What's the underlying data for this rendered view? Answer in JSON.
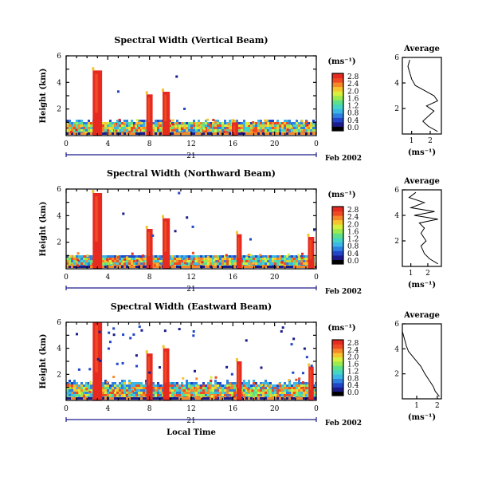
{
  "date_label": "Feb 2002",
  "x_title": "Local Time",
  "y_title": "Height (km)",
  "time_day": "21",
  "colorbar": {
    "unit": "(ms⁻¹)",
    "colors": [
      "#000000",
      "#1b1b8c",
      "#2146c8",
      "#2d7fe0",
      "#3bb7e6",
      "#45d6c3",
      "#5de08a",
      "#9bea4e",
      "#d7f03c",
      "#f6c52e",
      "#f5892a",
      "#ef4a23",
      "#e62a1f"
    ]
  },
  "avg_title": "Average",
  "avg_unit": "(ms⁻¹)",
  "chart_data": [
    {
      "type": "heatmap",
      "title": "Spectral Width (Vertical Beam)",
      "xlabel": "",
      "ylabel": "Height (km)",
      "xlim": [
        0,
        24
      ],
      "ylim": [
        0,
        6
      ],
      "x_ticks": [
        "0",
        "4",
        "8",
        "12",
        "16",
        "20",
        "0"
      ],
      "y_ticks": [
        "2",
        "4",
        "6"
      ],
      "colorbar_ticks": [
        "0.0",
        "0.4",
        "0.8",
        "1.2",
        "1.6",
        "2.0",
        "2.4",
        "2.8"
      ],
      "plumes": [
        {
          "t": 3.0,
          "w": 0.9,
          "top": 4.9
        },
        {
          "t": 8.0,
          "w": 0.6,
          "top": 3.1
        },
        {
          "t": 9.6,
          "w": 0.7,
          "top": 3.3
        },
        {
          "t": 16.2,
          "w": 0.6,
          "top": 1.0
        }
      ],
      "layer_top": [
        1.3,
        1.5
      ],
      "average": {
        "x_ticks": [
          "1",
          "2"
        ],
        "xlim": [
          0.5,
          2.6
        ],
        "ylim": [
          0,
          6
        ],
        "y_ticks": [
          "2",
          "4",
          "6"
        ],
        "profile": [
          [
            2.4,
            0.2
          ],
          [
            1.9,
            0.6
          ],
          [
            1.6,
            1.0
          ],
          [
            1.9,
            1.4
          ],
          [
            2.2,
            1.8
          ],
          [
            1.8,
            2.2
          ],
          [
            2.4,
            2.6
          ],
          [
            2.2,
            3.0
          ],
          [
            1.7,
            3.4
          ],
          [
            1.2,
            3.8
          ],
          [
            1.0,
            4.3
          ],
          [
            0.9,
            4.8
          ],
          [
            0.8,
            5.3
          ],
          [
            0.9,
            5.8
          ]
        ]
      }
    },
    {
      "type": "heatmap",
      "title": "Spectral Width (Northward Beam)",
      "xlabel": "",
      "ylabel": "Height (km)",
      "xlim": [
        0,
        24
      ],
      "ylim": [
        0,
        6
      ],
      "x_ticks": [
        "0",
        "4",
        "8",
        "12",
        "16",
        "20",
        "0"
      ],
      "y_ticks": [
        "2",
        "4",
        "6"
      ],
      "colorbar_ticks": [
        "0.0",
        "0.4",
        "0.8",
        "1.2",
        "1.6",
        "2.0",
        "2.4",
        "2.8"
      ],
      "plumes": [
        {
          "t": 3.0,
          "w": 0.9,
          "top": 5.7
        },
        {
          "t": 8.0,
          "w": 0.6,
          "top": 3.0
        },
        {
          "t": 9.6,
          "w": 0.7,
          "top": 3.8
        },
        {
          "t": 16.6,
          "w": 0.5,
          "top": 2.6
        },
        {
          "t": 23.5,
          "w": 0.6,
          "top": 2.4
        }
      ],
      "layer_top": [
        1.1,
        1.4
      ],
      "average": {
        "x_ticks": [
          "1",
          "2"
        ],
        "xlim": [
          0.5,
          2.8
        ],
        "ylim": [
          0,
          6
        ],
        "y_ticks": [
          "2",
          "4",
          "6"
        ],
        "profile": [
          [
            2.6,
            0.2
          ],
          [
            2.1,
            0.6
          ],
          [
            1.8,
            1.0
          ],
          [
            1.6,
            1.6
          ],
          [
            1.9,
            2.0
          ],
          [
            1.6,
            2.6
          ],
          [
            1.8,
            3.0
          ],
          [
            1.5,
            3.4
          ],
          [
            2.6,
            3.7
          ],
          [
            1.2,
            4.0
          ],
          [
            2.4,
            4.3
          ],
          [
            1.0,
            4.6
          ],
          [
            1.8,
            5.0
          ],
          [
            0.9,
            5.4
          ],
          [
            1.3,
            5.8
          ]
        ]
      }
    },
    {
      "type": "heatmap",
      "title": "Spectral Width (Eastward Beam)",
      "xlabel": "Local Time",
      "ylabel": "Height (km)",
      "xlim": [
        0,
        24
      ],
      "ylim": [
        0,
        6
      ],
      "x_ticks": [
        "0",
        "4",
        "8",
        "12",
        "16",
        "20",
        "0"
      ],
      "y_ticks": [
        "2",
        "4",
        "6"
      ],
      "colorbar_ticks": [
        "0.0",
        "0.4",
        "0.8",
        "1.2",
        "1.6",
        "2.0",
        "2.4",
        "2.8"
      ],
      "plumes": [
        {
          "t": 3.0,
          "w": 0.9,
          "top": 6.0
        },
        {
          "t": 8.0,
          "w": 0.6,
          "top": 3.6
        },
        {
          "t": 9.6,
          "w": 0.6,
          "top": 4.0
        },
        {
          "t": 16.6,
          "w": 0.5,
          "top": 3.0
        },
        {
          "t": 23.5,
          "w": 0.5,
          "top": 2.6
        }
      ],
      "layer_top": [
        1.6,
        2.2
      ],
      "average": {
        "x_ticks": [
          "1",
          "2"
        ],
        "xlim": [
          0.3,
          2.2
        ],
        "ylim": [
          0,
          6
        ],
        "y_ticks": [
          "2",
          "4",
          "6"
        ],
        "profile": [
          [
            2.1,
            0.2
          ],
          [
            1.9,
            0.6
          ],
          [
            1.8,
            1.0
          ],
          [
            1.6,
            1.5
          ],
          [
            1.4,
            2.0
          ],
          [
            1.2,
            2.6
          ],
          [
            0.9,
            3.2
          ],
          [
            0.6,
            3.8
          ],
          [
            0.5,
            4.2
          ],
          [
            0.4,
            4.8
          ],
          [
            0.3,
            5.4
          ],
          [
            0.3,
            5.9
          ]
        ]
      }
    }
  ]
}
